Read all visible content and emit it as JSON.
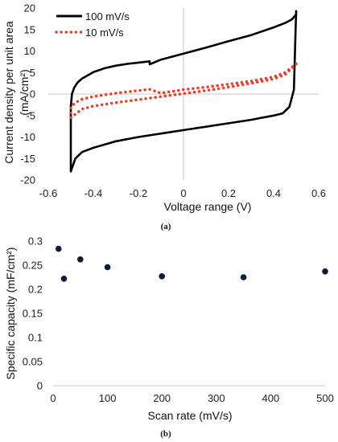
{
  "chart_data": [
    {
      "type": "line",
      "caption": "(a)",
      "xlabel": "Voltage range (V)",
      "ylabel_line1": "Current density per unit area",
      "ylabel_line2": "(mA/cm²)",
      "xlim": [
        -0.6,
        0.6
      ],
      "ylim": [
        -20,
        20
      ],
      "xticks": [
        -0.6,
        -0.4,
        -0.2,
        0,
        0.2,
        0.4,
        0.6
      ],
      "xtick_labels": [
        "-0.6",
        "-0.4",
        "-0.2",
        "0",
        "0.2",
        "0.4",
        "0.6"
      ],
      "yticks": [
        -20,
        -15,
        -10,
        -5,
        0,
        5,
        10,
        15,
        20
      ],
      "ytick_labels": [
        "-20",
        "-15",
        "-10",
        "-5",
        "0",
        "5",
        "10",
        "15",
        "20"
      ],
      "grid": false,
      "legend_position": "top-left",
      "series": [
        {
          "name": "100 mV/s",
          "color": "#000000",
          "style": "solid",
          "x": [
            0.5,
            0.49,
            0.47,
            0.44,
            0.4,
            0.35,
            0.3,
            0.2,
            0.1,
            0.0,
            -0.1,
            -0.2,
            -0.3,
            -0.4,
            -0.45,
            -0.48,
            -0.5,
            -0.5,
            -0.5,
            -0.495,
            -0.485,
            -0.47,
            -0.45,
            -0.4,
            -0.35,
            -0.3,
            -0.25,
            -0.2,
            -0.15,
            -0.15,
            -0.1,
            0.0,
            0.1,
            0.2,
            0.3,
            0.4,
            0.45,
            0.48,
            0.5,
            0.5
          ],
          "y": [
            19.5,
            1.0,
            -3.0,
            -4.5,
            -5.0,
            -5.5,
            -6.0,
            -6.8,
            -7.6,
            -8.4,
            -9.2,
            -10.0,
            -11.0,
            -12.5,
            -13.5,
            -15.0,
            -18.0,
            -10.0,
            -3.0,
            0.0,
            1.5,
            2.7,
            3.6,
            5.1,
            6.0,
            6.6,
            7.0,
            7.3,
            7.6,
            6.9,
            8.0,
            9.4,
            10.8,
            12.3,
            13.7,
            15.5,
            16.5,
            17.3,
            18.5,
            19.5
          ]
        },
        {
          "name": "10 mV/s",
          "color": "#E8412A",
          "style": "dotted",
          "x": [
            0.5,
            0.45,
            0.4,
            0.3,
            0.2,
            0.1,
            0.0,
            -0.1,
            -0.2,
            -0.3,
            -0.4,
            -0.45,
            -0.5,
            -0.5,
            -0.48,
            -0.45,
            -0.4,
            -0.3,
            -0.2,
            -0.15,
            -0.1,
            0.0,
            0.1,
            0.2,
            0.3,
            0.4,
            0.45,
            0.5
          ],
          "y": [
            7.0,
            4.5,
            3.5,
            2.5,
            1.6,
            0.8,
            0.1,
            -0.6,
            -1.3,
            -2.0,
            -2.8,
            -3.5,
            -5.5,
            -3.0,
            -2.0,
            -1.2,
            -0.6,
            0.2,
            0.8,
            1.1,
            0.2,
            1.0,
            1.6,
            2.3,
            3.0,
            4.0,
            5.0,
            7.0
          ]
        }
      ]
    },
    {
      "type": "scatter",
      "caption": "(b)",
      "xlabel": "Scan rate (mV/s)",
      "ylabel": "Specific capacity (mF/cm²)",
      "xlim": [
        0,
        500
      ],
      "ylim": [
        0,
        0.3
      ],
      "xticks": [
        0,
        100,
        200,
        300,
        400,
        500
      ],
      "xtick_labels": [
        "0",
        "100",
        "200",
        "300",
        "400",
        "500"
      ],
      "yticks": [
        0,
        0.05,
        0.1,
        0.15,
        0.2,
        0.25,
        0.3
      ],
      "ytick_labels": [
        "0",
        "0.05",
        "0.1",
        "0.15",
        "0.2",
        "0.25",
        "0.3"
      ],
      "grid": false,
      "marker_color": "#0B1B3A",
      "x": [
        10,
        20,
        50,
        100,
        200,
        350,
        500
      ],
      "y": [
        0.284,
        0.222,
        0.262,
        0.246,
        0.227,
        0.225,
        0.237
      ]
    }
  ]
}
